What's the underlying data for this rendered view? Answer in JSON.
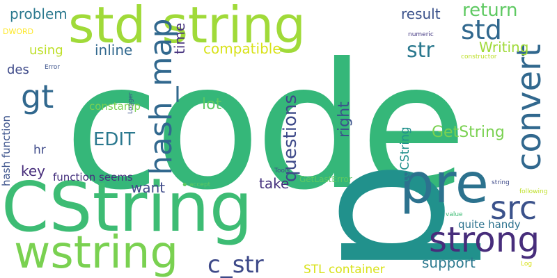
{
  "words": [
    {
      "id": "code",
      "text": "code",
      "color": "#35b779",
      "rotated": false
    },
    {
      "id": "p",
      "text": "p",
      "color": "#21918c",
      "rotated": true
    },
    {
      "id": "CString",
      "text": "CString",
      "color": "#3dbc74",
      "rotated": false
    },
    {
      "id": "std-string",
      "text": "std string",
      "color": "#a0da39",
      "rotated": false
    },
    {
      "id": "pre",
      "text": "pre",
      "color": "#2c728e",
      "rotated": false
    },
    {
      "id": "wstring",
      "text": "wstring",
      "color": "#7ad151",
      "rotated": false
    },
    {
      "id": "strong",
      "text": "strong",
      "color": "#472d7b",
      "rotated": false
    },
    {
      "id": "convert",
      "text": "convert",
      "color": "#31688e",
      "rotated": true
    },
    {
      "id": "src",
      "text": "src",
      "color": "#3b528b",
      "rotated": false
    },
    {
      "id": "hash_map",
      "text": "hash_map",
      "color": "#31688e",
      "rotated": true
    },
    {
      "id": "gt",
      "text": "gt",
      "color": "#31688e",
      "rotated": false
    },
    {
      "id": "std",
      "text": "std",
      "color": "#31688e",
      "rotated": false
    },
    {
      "id": "EDIT",
      "text": "EDIT",
      "color": "#2a788e",
      "rotated": false
    },
    {
      "id": "c_str",
      "text": "c_str",
      "color": "#3e4a89",
      "rotated": false
    },
    {
      "id": "questions",
      "text": "questions",
      "color": "#3e4a89",
      "rotated": true
    },
    {
      "id": "return",
      "text": "return",
      "color": "#5ec962",
      "rotated": false
    },
    {
      "id": "str",
      "text": "str",
      "color": "#2a788e",
      "rotated": false
    },
    {
      "id": "GetString",
      "text": "GetString",
      "color": "#7ad151",
      "rotated": false
    },
    {
      "id": "right",
      "text": "right",
      "color": "#3b528b",
      "rotated": true
    },
    {
      "id": "problem",
      "text": "problem",
      "color": "#2a788e",
      "rotated": false
    },
    {
      "id": "time",
      "text": "time",
      "color": "#46327e",
      "rotated": true
    },
    {
      "id": "inline",
      "text": "inline",
      "color": "#31688e",
      "rotated": false
    },
    {
      "id": "compatible",
      "text": "compatible",
      "color": "#d8e219",
      "rotated": false
    },
    {
      "id": "result",
      "text": "result",
      "color": "#3b528b",
      "rotated": false
    },
    {
      "id": "Writing",
      "text": "Writing",
      "color": "#a0da39",
      "rotated": false
    },
    {
      "id": "using",
      "text": "using",
      "color": "#bddf26",
      "rotated": false
    },
    {
      "id": "des",
      "text": "des",
      "color": "#3e4a89",
      "rotated": false
    },
    {
      "id": "lot",
      "text": "lot",
      "color": "#5ec962",
      "rotated": false
    },
    {
      "id": "constamp",
      "text": "constamp",
      "color": "#7ad151",
      "rotated": false
    },
    {
      "id": "toCString",
      "text": "toCString",
      "color": "#21918c",
      "rotated": true
    },
    {
      "id": "hr",
      "text": "hr",
      "color": "#3e4a89",
      "rotated": false
    },
    {
      "id": "key",
      "text": "key",
      "color": "#472d7b",
      "rotated": false
    },
    {
      "id": "want",
      "text": "want",
      "color": "#3e4a89",
      "rotated": false
    },
    {
      "id": "take",
      "text": "take",
      "color": "#46327e",
      "rotated": false
    },
    {
      "id": "function-seems",
      "text": "function seems",
      "color": "#46327e",
      "rotated": false
    },
    {
      "id": "hash-function",
      "text": "hash function",
      "color": "#3b528b",
      "rotated": true
    },
    {
      "id": "quite-handy",
      "text": "quite handy",
      "color": "#2c728e",
      "rotated": false
    },
    {
      "id": "support",
      "text": "support",
      "color": "#2a788e",
      "rotated": false
    },
    {
      "id": "STL-container",
      "text": "STL container",
      "color": "#d8e219",
      "rotated": false
    },
    {
      "id": "GetLastError",
      "text": "GetLastError",
      "color": "#5ec962",
      "rotated": false
    },
    {
      "id": "DWORD",
      "text": "DWORD",
      "color": "#fde725",
      "rotated": false
    },
    {
      "id": "Error",
      "text": "Error",
      "color": "#3b528b",
      "rotated": false
    },
    {
      "id": "numeric",
      "text": "numeric",
      "color": "#443983",
      "rotated": false
    },
    {
      "id": "constructor",
      "text": "constructor",
      "color": "#bddf26",
      "rotated": false
    },
    {
      "id": "Logger",
      "text": "Logger",
      "color": "#3b528b",
      "rotated": true
    },
    {
      "id": "Tools",
      "text": "Tools",
      "color": "#3e4a89",
      "rotated": false
    },
    {
      "id": "accept",
      "text": "accept",
      "color": "#5ec962",
      "rotated": false
    },
    {
      "id": "dot",
      "text": "•",
      "color": "#5ec962",
      "rotated": false
    },
    {
      "id": "string",
      "text": "string",
      "color": "#3e4a89",
      "rotated": false
    },
    {
      "id": "following",
      "text": "following",
      "color": "#bddf26",
      "rotated": false
    },
    {
      "id": "value",
      "text": "value",
      "color": "#3dbc74",
      "rotated": false
    },
    {
      "id": "Log",
      "text": "Log",
      "color": "#d8e219",
      "rotated": false
    }
  ]
}
